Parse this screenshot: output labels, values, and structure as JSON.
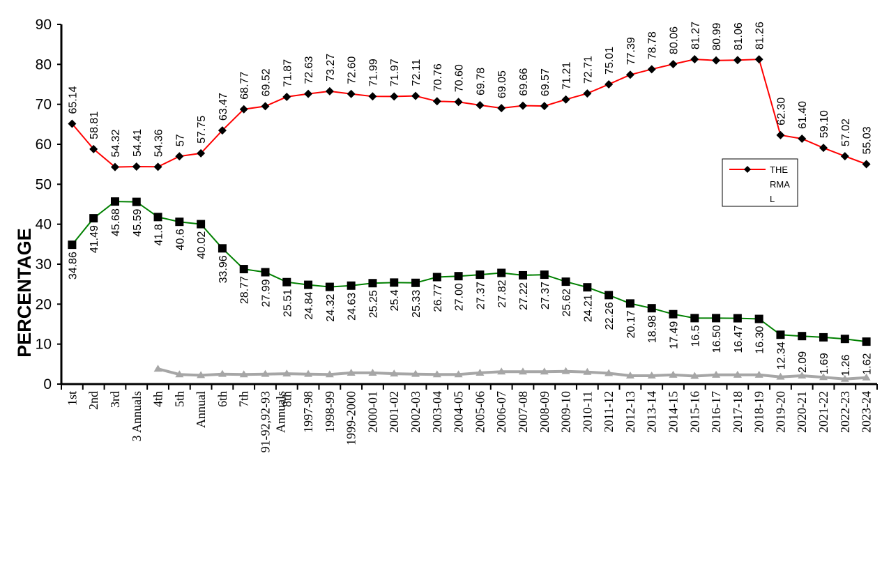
{
  "chart_data": {
    "type": "line",
    "title": "",
    "xlabel": "",
    "ylabel": "PERCENTAGE",
    "ylim": [
      0,
      90
    ],
    "yticks": [
      0,
      10,
      20,
      30,
      40,
      50,
      60,
      70,
      80,
      90
    ],
    "grid": false,
    "legend_position": "right",
    "categories": [
      "1st",
      "2nd",
      "3rd",
      "3 Annuals",
      "4th",
      "5th",
      "Annual",
      "6th",
      "7th",
      "Annuals 91-92,92-93",
      "8th",
      "1997-98",
      "1998-99",
      "1999-2000",
      "2000-01",
      "2001-02",
      "2002-03",
      "2003-04",
      "2004-05",
      "2005-06",
      "2006-07",
      "2007-08",
      "2008-09",
      "2009-10",
      "2010-11",
      "2011-12",
      "2012-13",
      "2013-14",
      "2014-15",
      "2015-16",
      "2016-17",
      "2017-18",
      "2018-19",
      "2019-20",
      "2020-21",
      "2021-22",
      "2022-23",
      "2023-24"
    ],
    "category_lines": [
      [
        "1st"
      ],
      [
        "2nd"
      ],
      [
        "3rd"
      ],
      [
        "3 Annuals"
      ],
      [
        "4th"
      ],
      [
        "5th"
      ],
      [
        "Annual"
      ],
      [
        "6th"
      ],
      [
        "7th"
      ],
      [
        "91-92,92-93",
        "Annuals"
      ],
      [
        "8th"
      ],
      [
        "1997-98"
      ],
      [
        "1998-99"
      ],
      [
        "1999-2000"
      ],
      [
        "2000-01"
      ],
      [
        "2001-02"
      ],
      [
        "2002-03"
      ],
      [
        "2003-04"
      ],
      [
        "2004-05"
      ],
      [
        "2005-06"
      ],
      [
        "2006-07"
      ],
      [
        "2007-08"
      ],
      [
        "2008-09"
      ],
      [
        "2009-10"
      ],
      [
        "2010-11"
      ],
      [
        "2011-12"
      ],
      [
        "2012-13"
      ],
      [
        "2013-14"
      ],
      [
        "2014-15"
      ],
      [
        "2015-16"
      ],
      [
        "2016-17"
      ],
      [
        "2017-18"
      ],
      [
        "2018-19"
      ],
      [
        "2019-20"
      ],
      [
        "2020-21"
      ],
      [
        "2021-22"
      ],
      [
        "2022-23"
      ],
      [
        "2023-24"
      ]
    ],
    "series": [
      {
        "name": "THERMAL",
        "legend_lines": [
          "THE",
          "RMA",
          "L"
        ],
        "color": "#ff0000",
        "marker": "diamond",
        "values": [
          65.14,
          58.81,
          54.32,
          54.41,
          54.36,
          57,
          57.75,
          63.47,
          68.77,
          69.52,
          71.87,
          72.63,
          73.27,
          72.6,
          71.99,
          71.97,
          72.11,
          70.76,
          70.6,
          69.78,
          69.05,
          69.66,
          69.57,
          71.21,
          72.71,
          75.01,
          77.39,
          78.78,
          80.06,
          81.27,
          80.99,
          81.06,
          81.26,
          62.3,
          61.4,
          59.1,
          57.02,
          55.03
        ],
        "labels": [
          "65.14",
          "58.81",
          "54.32",
          "54.41",
          "54.36",
          "57",
          "57.75",
          "63.47",
          "68.77",
          "69.52",
          "71.87",
          "72.63",
          "73.27",
          "72.60",
          "71.99",
          "71.97",
          "72.11",
          "70.76",
          "70.60",
          "69.78",
          "69.05",
          "69.66",
          "69.57",
          "71.21",
          "72.71",
          "75.01",
          "77.39",
          "78.78",
          "80.06",
          "81.27",
          "80.99",
          "81.06",
          "81.26",
          "62.30",
          "61.40",
          "59.10",
          "57.02",
          "55.03"
        ]
      },
      {
        "color": "#008000",
        "marker": "square",
        "values": [
          34.86,
          41.49,
          45.68,
          45.59,
          41.8,
          40.6,
          40.02,
          33.96,
          28.77,
          27.99,
          25.51,
          24.84,
          24.32,
          24.63,
          25.25,
          25.4,
          25.33,
          26.77,
          27.0,
          27.37,
          27.82,
          27.22,
          27.37,
          25.62,
          24.21,
          22.26,
          20.17,
          18.98,
          17.49,
          16.5,
          16.5,
          16.47,
          16.3,
          12.34,
          12.0,
          11.7,
          11.3,
          10.62
        ],
        "labels": [
          "34.86",
          "41.49",
          "45.68",
          "45.59",
          "41.8",
          "40.6",
          "40.02",
          "33.96",
          "28.77",
          "27.99",
          "25.51",
          "24.84",
          "24.32",
          "24.63",
          "25.25",
          "25.4",
          "25.33",
          "26.77",
          "27.00",
          "27.37",
          "27.82",
          "27.22",
          "27.37",
          "25.62",
          "24.21",
          "22.26",
          "20.17",
          "18.98",
          "17.49",
          "16.5",
          "16.50",
          "16.47",
          "16.30",
          "12.34",
          "",
          "",
          "",
          ""
        ]
      },
      {
        "color": "#a6a6a6",
        "marker": "triangle",
        "values": [
          null,
          null,
          null,
          null,
          3.8,
          2.4,
          2.2,
          2.5,
          2.4,
          2.5,
          2.6,
          2.5,
          2.4,
          2.8,
          2.8,
          2.6,
          2.5,
          2.4,
          2.4,
          2.8,
          3.1,
          3.1,
          3.1,
          3.2,
          3.0,
          2.7,
          2.1,
          2.1,
          2.3,
          2.0,
          2.3,
          2.3,
          2.3,
          1.8,
          2.09,
          1.69,
          1.26,
          1.62
        ],
        "labels": [
          "",
          "",
          "",
          "",
          "",
          "",
          "",
          "",
          "",
          "",
          "",
          "",
          "",
          "",
          "",
          "",
          "",
          "",
          "",
          "",
          "",
          "",
          "",
          "",
          "",
          "",
          "",
          "",
          "",
          "",
          "",
          "",
          "",
          "",
          "2.09",
          "1.69",
          "1.26",
          "1.62"
        ]
      }
    ]
  }
}
